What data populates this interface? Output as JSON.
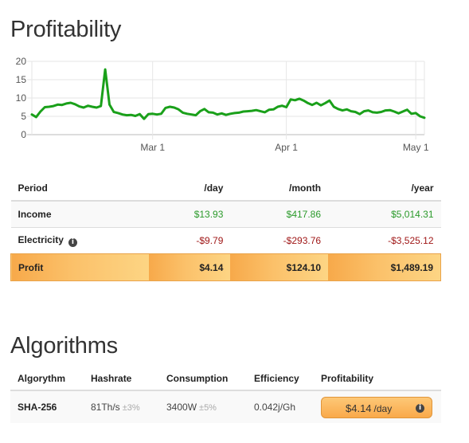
{
  "profitability": {
    "title": "Profitability",
    "table": {
      "headers": [
        "Period",
        "/day",
        "/month",
        "/year"
      ],
      "rows": [
        {
          "label": "Income",
          "day": "$13.93",
          "month": "$417.86",
          "year": "$5,014.31"
        },
        {
          "label": "Electricity",
          "day": "-$9.79",
          "month": "-$293.76",
          "year": "-$3,525.12"
        },
        {
          "label": "Profit",
          "day": "$4.14",
          "month": "$124.10",
          "year": "$1,489.19"
        }
      ]
    }
  },
  "chart_data": {
    "type": "line",
    "title": "",
    "xlabel": "",
    "ylabel": "",
    "ylim": [
      0,
      20
    ],
    "yticks": [
      "0",
      "5",
      "10",
      "15",
      "20"
    ],
    "xtick_labels": [
      "Mar 1",
      "Apr 1",
      "May 1"
    ],
    "grid": true,
    "legend": "none",
    "series": [
      {
        "color": "#1aa01a",
        "x": [
          "2021-02-01",
          "2021-02-02",
          "2021-02-03",
          "2021-02-04",
          "2021-02-05",
          "2021-02-06",
          "2021-02-07",
          "2021-02-08",
          "2021-02-09",
          "2021-02-10",
          "2021-02-11",
          "2021-02-12",
          "2021-02-13",
          "2021-02-14",
          "2021-02-15",
          "2021-02-16",
          "2021-02-17",
          "2021-02-18",
          "2021-02-19",
          "2021-02-20",
          "2021-02-21",
          "2021-02-22",
          "2021-02-23",
          "2021-02-24",
          "2021-02-25",
          "2021-02-26",
          "2021-02-27",
          "2021-02-28",
          "2021-03-01",
          "2021-03-02",
          "2021-03-03",
          "2021-03-04",
          "2021-03-05",
          "2021-03-06",
          "2021-03-07",
          "2021-03-08",
          "2021-03-09",
          "2021-03-10",
          "2021-03-11",
          "2021-03-12",
          "2021-03-13",
          "2021-03-14",
          "2021-03-15",
          "2021-03-16",
          "2021-03-17",
          "2021-03-18",
          "2021-03-19",
          "2021-03-20",
          "2021-03-21",
          "2021-03-22",
          "2021-03-23",
          "2021-03-24",
          "2021-03-25",
          "2021-03-26",
          "2021-03-27",
          "2021-03-28",
          "2021-03-29",
          "2021-03-30",
          "2021-03-31",
          "2021-04-01",
          "2021-04-02",
          "2021-04-03",
          "2021-04-04",
          "2021-04-05",
          "2021-04-06",
          "2021-04-07",
          "2021-04-08",
          "2021-04-09",
          "2021-04-10",
          "2021-04-11",
          "2021-04-12",
          "2021-04-13",
          "2021-04-14",
          "2021-04-15",
          "2021-04-16",
          "2021-04-17",
          "2021-04-18",
          "2021-04-19",
          "2021-04-20",
          "2021-04-21",
          "2021-04-22",
          "2021-04-23",
          "2021-04-24",
          "2021-04-25",
          "2021-04-26",
          "2021-04-27",
          "2021-04-28",
          "2021-04-29",
          "2021-04-30",
          "2021-05-01",
          "2021-05-02",
          "2021-05-03"
        ],
        "y": [
          5.5,
          4.8,
          6.3,
          7.5,
          7.6,
          7.8,
          8.2,
          8.1,
          8.5,
          8.7,
          8.3,
          7.7,
          7.4,
          7.9,
          7.6,
          7.4,
          7.8,
          17.8,
          8.2,
          6.2,
          5.9,
          5.5,
          5.3,
          5.4,
          5.1,
          5.6,
          4.3,
          5.6,
          5.7,
          5.5,
          5.7,
          7.3,
          7.6,
          7.4,
          6.9,
          6.0,
          5.7,
          5.5,
          5.3,
          6.4,
          7.0,
          6.1,
          6.0,
          5.5,
          5.8,
          5.4,
          5.7,
          5.9,
          6.0,
          6.3,
          6.4,
          6.5,
          6.7,
          6.4,
          6.1,
          6.8,
          6.9,
          7.6,
          7.9,
          7.5,
          9.6,
          9.4,
          9.8,
          9.3,
          8.6,
          8.1,
          8.7,
          8.0,
          8.6,
          9.3,
          7.6,
          7.0,
          6.6,
          6.9,
          6.4,
          6.2,
          5.6,
          6.4,
          6.6,
          6.1,
          6.0,
          6.2,
          6.6,
          6.7,
          6.3,
          5.8,
          6.3,
          6.8,
          5.7,
          5.9,
          5.0,
          4.6
        ]
      }
    ]
  },
  "algorithms": {
    "title": "Algorithms",
    "headers": [
      "Algorythm",
      "Hashrate",
      "Consumption",
      "Efficiency",
      "Profitability"
    ],
    "rows": [
      {
        "name": "SHA-256",
        "hashrate": "81Th/s",
        "hashrate_tolerance": "±3%",
        "consumption": "3400W",
        "consumption_tolerance": "±5%",
        "efficiency": "0.042j/Gh",
        "profit_amount": "$4.14",
        "profit_unit": "/day"
      }
    ]
  },
  "colors": {
    "line": "#1aa01a",
    "income": "#2a9a2a",
    "electricity": "#a01818",
    "profit_highlight": "#f9a94a",
    "efficiency_link": "#3a87ad"
  },
  "icons": {
    "info": "info-icon"
  }
}
